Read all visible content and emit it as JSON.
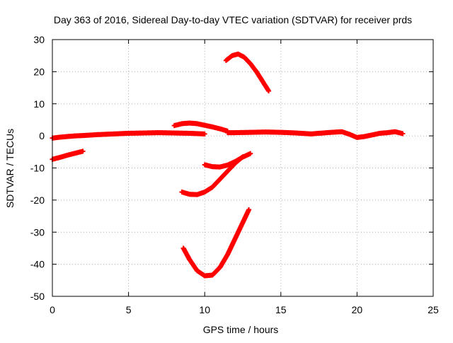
{
  "chart_data": {
    "type": "scatter",
    "title": "Day 363 of 2016, Sidereal Day-to-day VTEC variation (SDTVAR) for receiver prds",
    "xlabel": "GPS time / hours",
    "ylabel": "SDTVAR / TECUs",
    "xlim": [
      0,
      25
    ],
    "ylim": [
      -50,
      30
    ],
    "xticks": [
      0,
      5,
      10,
      15,
      20,
      25
    ],
    "yticks": [
      -50,
      -40,
      -30,
      -20,
      -10,
      0,
      10,
      20,
      30
    ],
    "grid": true,
    "legend": "none",
    "marker": "plus",
    "color": "#ff0000",
    "series": [
      {
        "x": [
          0,
          0.5,
          1,
          1.5,
          2,
          3,
          4,
          5,
          6,
          7,
          8,
          9,
          10
        ],
        "y": [
          -0.7,
          -0.4,
          -0.2,
          0,
          0.1,
          0.4,
          0.6,
          0.8,
          0.9,
          1.0,
          0.9,
          0.8,
          0.6
        ]
      },
      {
        "x": [
          0,
          0.5,
          1,
          1.5,
          2
        ],
        "y": [
          -7.3,
          -6.7,
          -6.0,
          -5.4,
          -4.8
        ]
      },
      {
        "x": [
          8,
          8.5,
          9,
          9.5,
          10,
          10.5,
          11,
          11.5
        ],
        "y": [
          3.2,
          3.8,
          4.0,
          3.8,
          3.3,
          2.8,
          2.2,
          1.5
        ]
      },
      {
        "x": [
          11.5,
          12,
          13,
          14,
          15,
          16,
          17,
          18,
          19,
          19.5,
          20,
          20.5,
          21,
          21.5,
          22,
          22.5,
          23
        ],
        "y": [
          1.0,
          1.0,
          1.1,
          1.2,
          1.1,
          0.9,
          0.6,
          1.0,
          1.3,
          0.5,
          -0.5,
          -0.2,
          0.3,
          0.8,
          1.0,
          1.3,
          0.7
        ]
      },
      {
        "x": [
          11.4,
          11.8,
          12.2,
          12.6,
          13.0,
          13.4,
          13.8,
          14.2
        ],
        "y": [
          23.5,
          25.0,
          25.5,
          24.5,
          22.5,
          20.0,
          17.0,
          14.0
        ]
      },
      {
        "x": [
          10,
          10.5,
          11,
          11.5,
          12,
          12.5,
          13
        ],
        "y": [
          -9.0,
          -9.6,
          -9.7,
          -9.1,
          -8.0,
          -6.6,
          -5.5
        ]
      },
      {
        "x": [
          8.5,
          9,
          9.5,
          10,
          10.5,
          11,
          11.5,
          12,
          12.5
        ],
        "y": [
          -17.5,
          -18.2,
          -18.3,
          -17.5,
          -16.0,
          -13.5,
          -11.0,
          -8.5,
          -6.5
        ]
      },
      {
        "x": [
          8.6,
          9,
          9.5,
          10,
          10.5,
          11,
          11.5,
          12,
          12.5,
          12.9
        ],
        "y": [
          -35,
          -38.5,
          -42,
          -43.6,
          -43.4,
          -41,
          -37,
          -32,
          -27,
          -23
        ]
      }
    ]
  }
}
